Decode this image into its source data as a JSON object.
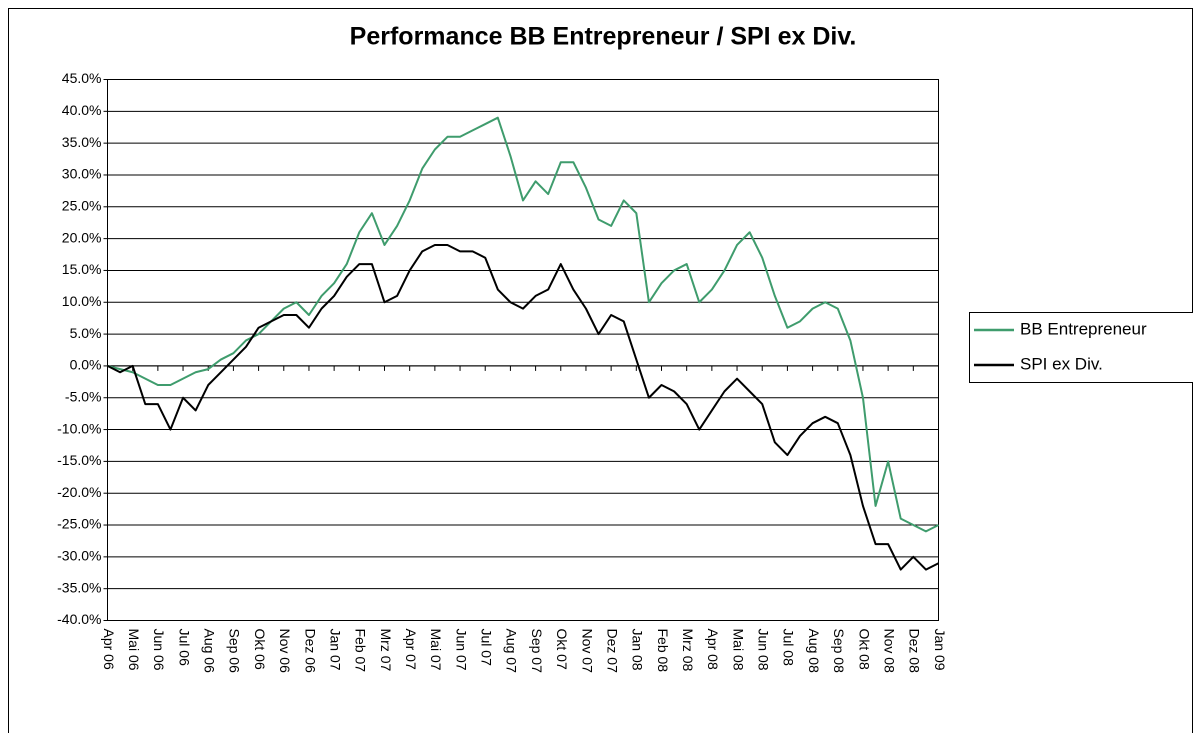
{
  "chart_data": {
    "type": "line",
    "title": "Performance BB Entrepreneur / SPI ex Div.",
    "categories": [
      "Apr 06",
      null,
      "Mai 06",
      null,
      "Jun 06",
      null,
      "Jul 06",
      null,
      "Aug 06",
      null,
      "Sep 06",
      null,
      "Okt 06",
      null,
      "Nov 06",
      null,
      "Dez 06",
      null,
      "Jan 07",
      null,
      "Feb 07",
      null,
      "Mrz 07",
      null,
      "Apr 07",
      null,
      "Mai 07",
      null,
      "Jun 07",
      null,
      "Jul 07",
      null,
      "Aug 07",
      null,
      "Sep 07",
      null,
      "Okt 07",
      null,
      "Nov 07",
      null,
      "Dez 07",
      null,
      "Jan 08",
      null,
      "Feb 08",
      null,
      "Mrz 08",
      null,
      "Apr 08",
      null,
      "Mai 08",
      null,
      "Jun 08",
      null,
      "Jul 08",
      null,
      "Aug 08",
      null,
      "Sep 08",
      null,
      "Okt 08",
      null,
      "Nov 08",
      null,
      "Dez 08",
      null,
      "Jan 09"
    ],
    "series": [
      {
        "name": "BB Entrepreneur",
        "color": "#3f9c6d",
        "values": [
          0,
          -0.5,
          -1,
          -2,
          -3,
          -3,
          -2,
          -1,
          -0.5,
          1,
          2,
          4,
          5,
          7,
          9,
          10,
          8,
          11,
          13,
          16,
          21,
          24,
          19,
          22,
          26,
          31,
          34,
          36,
          36,
          37,
          38,
          39,
          33,
          26,
          29,
          27,
          32,
          32,
          28,
          23,
          22,
          26,
          24,
          10,
          13,
          15,
          16,
          10,
          12,
          15,
          19,
          21,
          17,
          11,
          6,
          7,
          9,
          10,
          9,
          4,
          -5,
          -22,
          -15,
          -24,
          -25,
          -26,
          -25
        ]
      },
      {
        "name": "SPI ex Div.",
        "color": "#000000",
        "values": [
          0,
          -1,
          0,
          -6,
          -6,
          -10,
          -5,
          -7,
          -3,
          -1,
          1,
          3,
          6,
          7,
          8,
          8,
          6,
          9,
          11,
          14,
          16,
          16,
          10,
          11,
          15,
          18,
          19,
          19,
          18,
          18,
          17,
          12,
          10,
          9,
          11,
          12,
          16,
          12,
          9,
          5,
          8,
          7,
          1,
          -5,
          -3,
          -4,
          -6,
          -10,
          -7,
          -4,
          -2,
          -4,
          -6,
          -12,
          -14,
          -11,
          -9,
          -8,
          -9,
          -14,
          -22,
          -28,
          -28,
          -32,
          -30,
          -32,
          -31
        ]
      }
    ],
    "ylim": [
      -40,
      45
    ],
    "yticks": [
      {
        "value": -40,
        "label": "-40.0%"
      },
      {
        "value": -35,
        "label": "-35.0%"
      },
      {
        "value": -30,
        "label": "-30.0%"
      },
      {
        "value": -25,
        "label": "-25.0%"
      },
      {
        "value": -20,
        "label": "-20.0%"
      },
      {
        "value": -15,
        "label": "-15.0%"
      },
      {
        "value": -10,
        "label": "-10.0%"
      },
      {
        "value": -5,
        "label": "-5.0%"
      },
      {
        "value": 0,
        "label": "0.0%"
      },
      {
        "value": 5,
        "label": "5.0%"
      },
      {
        "value": 10,
        "label": "10.0%"
      },
      {
        "value": 15,
        "label": "15.0%"
      },
      {
        "value": 20,
        "label": "20.0%"
      },
      {
        "value": 25,
        "label": "25.0%"
      },
      {
        "value": 30,
        "label": "30.0%"
      },
      {
        "value": 35,
        "label": "35.0%"
      },
      {
        "value": 40,
        "label": "40.0%"
      },
      {
        "value": 45,
        "label": "45.0%"
      }
    ],
    "grid": true,
    "legend": "right"
  }
}
